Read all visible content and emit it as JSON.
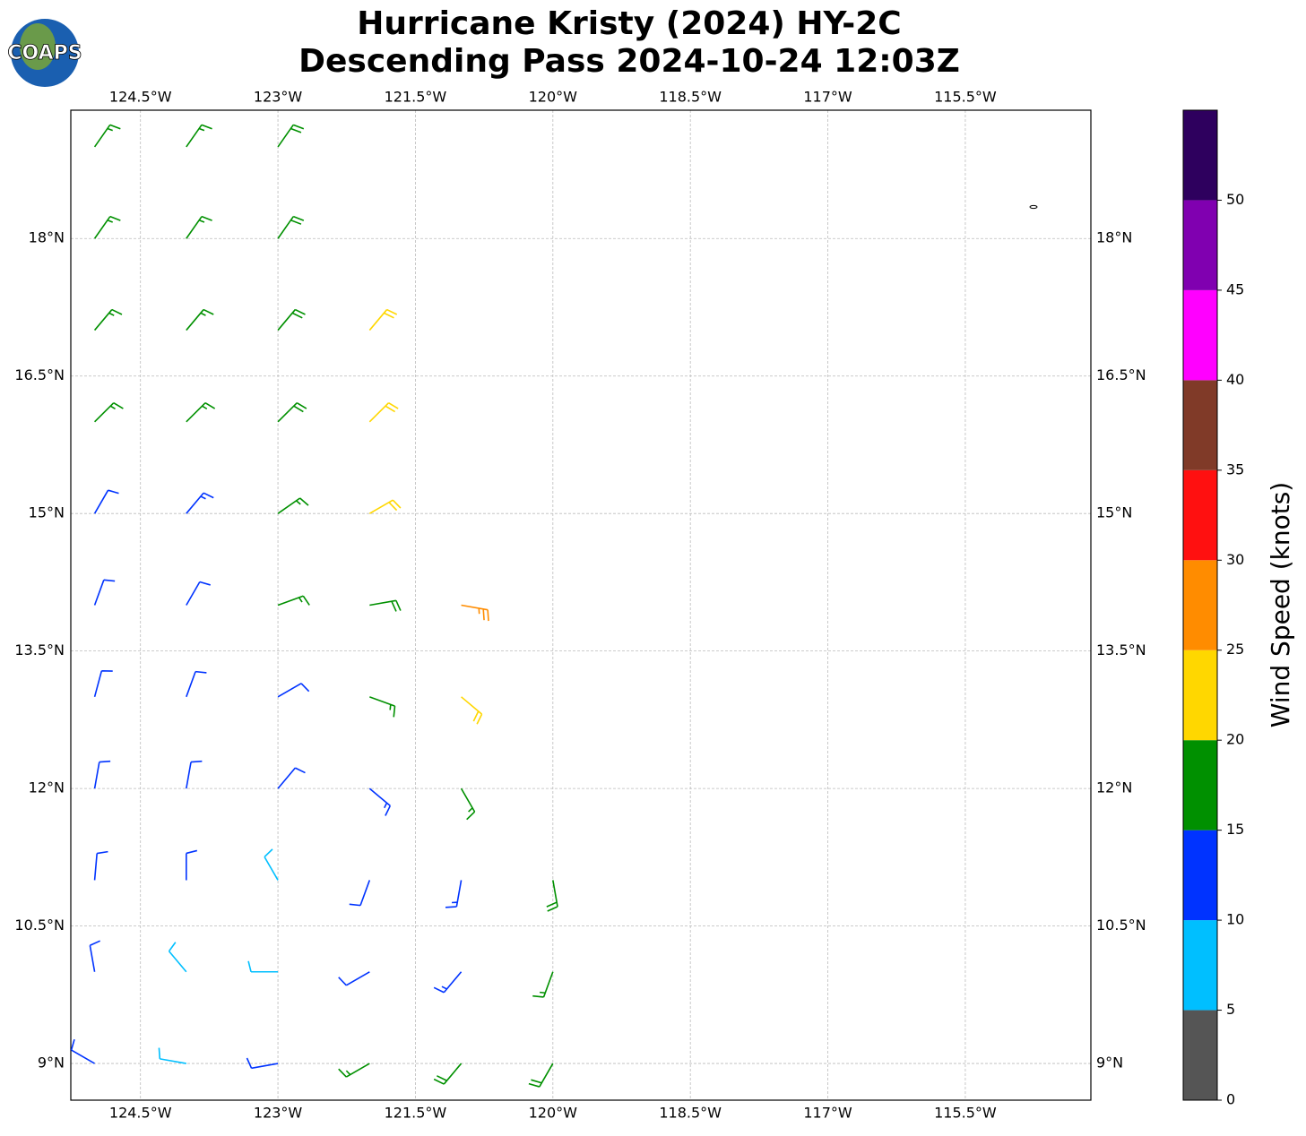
{
  "chart_data": {
    "type": "barbs",
    "title": [
      "Hurricane Kristy (2024) HY-2C",
      "Descending Pass 2024-10-24 12:03Z"
    ],
    "logo": "COAPS",
    "xlim": [
      -125.26,
      -114.13
    ],
    "ylim": [
      8.6,
      19.4
    ],
    "xticks": [
      {
        "value": -124.5,
        "label": "124.5°W"
      },
      {
        "value": -123,
        "label": "123°W"
      },
      {
        "value": -121.5,
        "label": "121.5°W"
      },
      {
        "value": -120,
        "label": "120°W"
      },
      {
        "value": -118.5,
        "label": "118.5°W"
      },
      {
        "value": -117,
        "label": "117°W"
      },
      {
        "value": -115.5,
        "label": "115.5°W"
      }
    ],
    "yticks": [
      {
        "value": 9,
        "label": "9°N"
      },
      {
        "value": 10.5,
        "label": "10.5°N"
      },
      {
        "value": 12,
        "label": "12°N"
      },
      {
        "value": 13.5,
        "label": "13.5°N"
      },
      {
        "value": 15,
        "label": "15°N"
      },
      {
        "value": 16.5,
        "label": "16.5°N"
      },
      {
        "value": 18,
        "label": "18°N"
      }
    ],
    "grid": true,
    "colorbar": {
      "label": "Wind Speed (knots)",
      "bounds": [
        0,
        5,
        10,
        15,
        20,
        25,
        30,
        35,
        40,
        45,
        50,
        55
      ],
      "colors": [
        "#555555",
        "#00bfff",
        "#0033ff",
        "#009000",
        "#ffd700",
        "#ff8c00",
        "#ff1010",
        "#803a28",
        "#ff00ff",
        "#8000b0",
        "#2e005e"
      ],
      "ticks": [
        0,
        5,
        10,
        15,
        20,
        25,
        30,
        35,
        40,
        45,
        50
      ]
    },
    "barbs": [
      [
        -125,
        19,
        17,
        35
      ],
      [
        -124,
        19,
        17,
        35
      ],
      [
        -123,
        19,
        19,
        35
      ],
      [
        -125,
        18,
        17,
        35
      ],
      [
        -124,
        18,
        17,
        35
      ],
      [
        -123,
        18,
        18,
        35
      ],
      [
        -125,
        17,
        17,
        40
      ],
      [
        -124,
        17,
        17,
        40
      ],
      [
        -123,
        17,
        18,
        40
      ],
      [
        -122,
        17,
        21,
        40
      ],
      [
        -125,
        16,
        16,
        45
      ],
      [
        -124,
        16,
        17,
        45
      ],
      [
        -123,
        16,
        19,
        45
      ],
      [
        -122,
        16,
        22,
        45
      ],
      [
        -125,
        15,
        12,
        30
      ],
      [
        -124,
        15,
        14,
        40
      ],
      [
        -123,
        15,
        17,
        55
      ],
      [
        -122,
        15,
        22,
        60
      ],
      [
        -125,
        14,
        12,
        20
      ],
      [
        -124,
        14,
        12,
        30
      ],
      [
        -123,
        14,
        15,
        70
      ],
      [
        -122,
        14,
        19,
        80
      ],
      [
        -121,
        14,
        27,
        100
      ],
      [
        -125,
        13,
        11,
        15
      ],
      [
        -124,
        13,
        11,
        20
      ],
      [
        -123,
        13,
        12,
        60
      ],
      [
        -122,
        13,
        17,
        110
      ],
      [
        -121,
        13,
        22,
        130
      ],
      [
        -125,
        12,
        11,
        10
      ],
      [
        -124,
        12,
        11,
        10
      ],
      [
        -123,
        12,
        11,
        40
      ],
      [
        -122,
        12,
        13,
        130
      ],
      [
        -121,
        12,
        17,
        150
      ],
      [
        -125,
        11,
        11,
        5
      ],
      [
        -124,
        11,
        10,
        0
      ],
      [
        -123,
        11,
        8,
        330
      ],
      [
        -122,
        11,
        12,
        200
      ],
      [
        -121,
        11,
        13,
        190
      ],
      [
        -120,
        11,
        18,
        170
      ],
      [
        -125,
        10,
        12,
        350
      ],
      [
        -124,
        10,
        8,
        320
      ],
      [
        -123,
        10,
        8,
        270
      ],
      [
        -122,
        10,
        12,
        240
      ],
      [
        -121,
        10,
        14,
        220
      ],
      [
        -120,
        10,
        17,
        200
      ],
      [
        -125,
        9,
        10,
        300
      ],
      [
        -124,
        9,
        9,
        280
      ],
      [
        -123,
        9,
        12,
        260
      ],
      [
        -122,
        9,
        16,
        240
      ],
      [
        -121,
        9,
        19,
        220
      ],
      [
        -120,
        9,
        19,
        210
      ]
    ]
  }
}
